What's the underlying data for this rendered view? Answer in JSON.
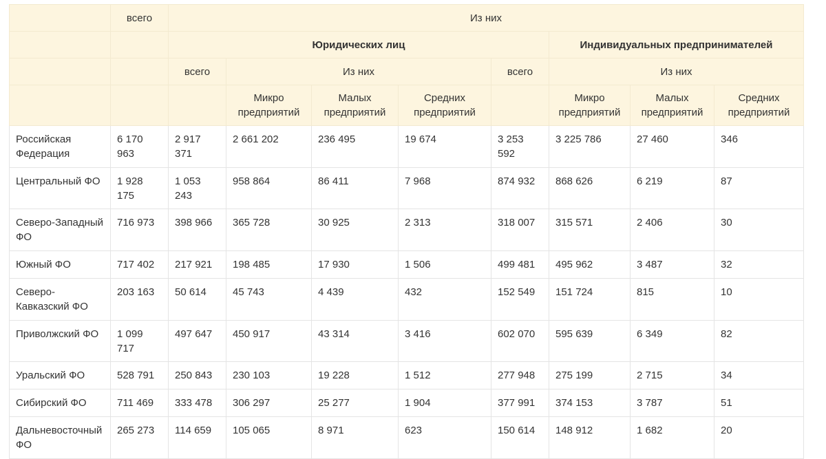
{
  "header": {
    "total": "всего",
    "of_them": "Из них",
    "legal": "Юридических лиц",
    "individual": "Индивидуальных предпринимателей",
    "legal_total": "всего",
    "legal_of_them": "Из них",
    "ip_total": "всего",
    "ip_of_them": "Из них",
    "micro": "Микро предприятий",
    "small": "Малых предприятий",
    "medium": "Средних предприятий",
    "micro2": "Микро предприятий",
    "small2": "Малых предприятий",
    "medium2": "Средних предприятий"
  },
  "rows": [
    {
      "region": "Российская Федерация",
      "total": "6 170 963",
      "legal_total": "2 917 371",
      "legal_micro": "2 661 202",
      "legal_small": "236 495",
      "legal_medium": "19 674",
      "ip_total": "3 253 592",
      "ip_micro": "3 225 786",
      "ip_small": "27 460",
      "ip_medium": "346"
    },
    {
      "region": "Центральный ФО",
      "total": "1 928 175",
      "legal_total": "1 053 243",
      "legal_micro": "958 864",
      "legal_small": "86 411",
      "legal_medium": "7 968",
      "ip_total": "874 932",
      "ip_micro": "868 626",
      "ip_small": "6 219",
      "ip_medium": "87"
    },
    {
      "region": "Северо-Западный ФО",
      "total": "716 973",
      "legal_total": "398 966",
      "legal_micro": "365 728",
      "legal_small": "30 925",
      "legal_medium": "2 313",
      "ip_total": "318 007",
      "ip_micro": "315 571",
      "ip_small": "2 406",
      "ip_medium": "30"
    },
    {
      "region": "Южный ФО",
      "total": "717 402",
      "legal_total": "217 921",
      "legal_micro": "198 485",
      "legal_small": "17 930",
      "legal_medium": "1 506",
      "ip_total": "499 481",
      "ip_micro": "495 962",
      "ip_small": "3 487",
      "ip_medium": "32"
    },
    {
      "region": "Северо-Кавказский ФО",
      "total": "203 163",
      "legal_total": "50 614",
      "legal_micro": "45 743",
      "legal_small": "4 439",
      "legal_medium": "432",
      "ip_total": "152 549",
      "ip_micro": "151 724",
      "ip_small": "815",
      "ip_medium": "10"
    },
    {
      "region": "Приволжский ФО",
      "total": "1 099 717",
      "legal_total": "497 647",
      "legal_micro": "450 917",
      "legal_small": "43 314",
      "legal_medium": "3 416",
      "ip_total": "602 070",
      "ip_micro": "595 639",
      "ip_small": "6 349",
      "ip_medium": "82"
    },
    {
      "region": "Уральский ФО",
      "total": "528 791",
      "legal_total": "250 843",
      "legal_micro": "230 103",
      "legal_small": "19 228",
      "legal_medium": "1 512",
      "ip_total": "277 948",
      "ip_micro": "275 199",
      "ip_small": "2 715",
      "ip_medium": "34"
    },
    {
      "region": "Сибирский ФО",
      "total": "711 469",
      "legal_total": "333 478",
      "legal_micro": "306 297",
      "legal_small": "25 277",
      "legal_medium": "1 904",
      "ip_total": "377 991",
      "ip_micro": "374 153",
      "ip_small": "3 787",
      "ip_medium": "51"
    },
    {
      "region": "Дальневосточный ФО",
      "total": "265 273",
      "legal_total": "114 659",
      "legal_micro": "105 065",
      "legal_small": "8 971",
      "legal_medium": "623",
      "ip_total": "150 614",
      "ip_micro": "148 912",
      "ip_small": "1 682",
      "ip_medium": "20"
    }
  ]
}
